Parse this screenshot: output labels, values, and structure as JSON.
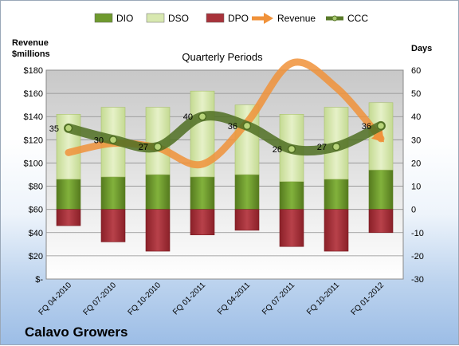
{
  "legend": [
    {
      "name": "DIO",
      "kind": "box",
      "color": "#6f9a2e"
    },
    {
      "name": "DSO",
      "kind": "box",
      "color": "#d8e8b0"
    },
    {
      "name": "DPO",
      "kind": "box",
      "color": "#a8323a"
    },
    {
      "name": "Revenue",
      "kind": "arrow",
      "color": "#f0923a"
    },
    {
      "name": "CCC",
      "kind": "line",
      "color": "#5a7a2a"
    }
  ],
  "chart_data": {
    "type": "bar",
    "title": "Quarterly Periods",
    "left_axis_title": [
      "Revenue",
      "$millions"
    ],
    "right_axis_title": "Days",
    "company": "Calavo Growers",
    "categories": [
      "FQ 04-2010",
      "FQ 07-2010",
      "FQ 10-2010",
      "FQ 01-2011",
      "FQ 04-2011",
      "FQ 07-2011",
      "FQ 10-2011",
      "FQ 01-2012"
    ],
    "left_ticks": [
      "$-",
      "$20",
      "$40",
      "$60",
      "$80",
      "$100",
      "$120",
      "$140",
      "$160",
      "$180"
    ],
    "left_range": [
      0,
      180
    ],
    "right_ticks": [
      "-30",
      "-20",
      "-10",
      "0",
      "10",
      "20",
      "30",
      "40",
      "50",
      "60"
    ],
    "right_range": [
      -30,
      60
    ],
    "grid": true,
    "legend_position": "top",
    "series": [
      {
        "name": "DIO",
        "axis": "right",
        "values": [
          13,
          14,
          15,
          14,
          15,
          12,
          13,
          17
        ]
      },
      {
        "name": "DSO",
        "axis": "right",
        "values": [
          28,
          30,
          29,
          37,
          30,
          29,
          31,
          29
        ]
      },
      {
        "name": "DPO",
        "axis": "right",
        "values": [
          -7,
          -14,
          -18,
          -11,
          -9,
          -16,
          -18,
          -10
        ]
      },
      {
        "name": "Revenue",
        "axis": "left",
        "values": [
          109,
          117,
          113,
          99,
          135,
          186,
          165,
          121
        ]
      },
      {
        "name": "CCC",
        "axis": "right",
        "values": [
          35,
          30,
          27,
          40,
          36,
          26,
          27,
          36
        ]
      }
    ],
    "ccc_labels": [
      "35",
      "30",
      "27",
      "40",
      "36",
      "26",
      "27",
      "36"
    ]
  }
}
